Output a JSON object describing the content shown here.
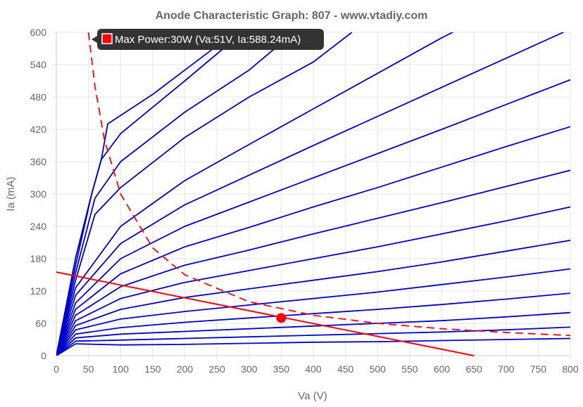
{
  "chart_data": {
    "type": "line",
    "title": "Anode Characteristic Graph: 807 - www.vtadiy.com",
    "xlabel": "Va (V)",
    "ylabel": "Ia (mA)",
    "xlim": [
      0,
      800
    ],
    "ylim": [
      0,
      600
    ],
    "x_ticks": [
      "0",
      "50",
      "100",
      "150",
      "200",
      "250",
      "300",
      "350",
      "400",
      "450",
      "500",
      "550",
      "600",
      "650",
      "700",
      "750",
      "800"
    ],
    "y_ticks": [
      "0",
      "60",
      "120",
      "180",
      "240",
      "300",
      "360",
      "420",
      "480",
      "540",
      "600"
    ],
    "grid": true,
    "colors": {
      "curves": "#0000cc",
      "load_line": "#ff0000",
      "max_power": "#ff0000",
      "operating_point": "#ff0000",
      "tooltip_bg": "#333333"
    },
    "series": [
      {
        "values": [
          [
            0,
            0
          ],
          [
            30,
            22
          ],
          [
            100,
            20
          ],
          [
            200,
            21
          ],
          [
            300,
            23
          ],
          [
            400,
            25
          ],
          [
            500,
            26
          ],
          [
            600,
            28
          ],
          [
            700,
            30
          ],
          [
            800,
            32
          ]
        ]
      },
      {
        "values": [
          [
            0,
            0
          ],
          [
            30,
            27
          ],
          [
            100,
            29
          ],
          [
            200,
            32
          ],
          [
            300,
            35
          ],
          [
            400,
            38
          ],
          [
            500,
            41
          ],
          [
            600,
            44
          ],
          [
            700,
            48
          ],
          [
            800,
            53
          ]
        ]
      },
      {
        "values": [
          [
            0,
            0
          ],
          [
            30,
            33
          ],
          [
            100,
            40
          ],
          [
            200,
            45
          ],
          [
            300,
            50
          ],
          [
            400,
            55
          ],
          [
            500,
            60
          ],
          [
            600,
            65
          ],
          [
            700,
            72
          ],
          [
            800,
            80
          ]
        ]
      },
      {
        "values": [
          [
            0,
            0
          ],
          [
            30,
            40
          ],
          [
            100,
            52
          ],
          [
            200,
            62
          ],
          [
            300,
            70
          ],
          [
            400,
            78
          ],
          [
            500,
            86
          ],
          [
            600,
            95
          ],
          [
            700,
            105
          ],
          [
            800,
            116
          ]
        ]
      },
      {
        "values": [
          [
            0,
            0
          ],
          [
            30,
            48
          ],
          [
            100,
            68
          ],
          [
            200,
            82
          ],
          [
            300,
            94
          ],
          [
            400,
            106
          ],
          [
            500,
            118
          ],
          [
            600,
            132
          ],
          [
            700,
            146
          ],
          [
            800,
            161
          ]
        ]
      },
      {
        "values": [
          [
            0,
            0
          ],
          [
            30,
            56
          ],
          [
            100,
            86
          ],
          [
            200,
            108
          ],
          [
            300,
            124
          ],
          [
            400,
            140
          ],
          [
            500,
            156
          ],
          [
            600,
            174
          ],
          [
            700,
            194
          ],
          [
            800,
            214
          ]
        ]
      },
      {
        "values": [
          [
            0,
            0
          ],
          [
            30,
            65
          ],
          [
            100,
            106
          ],
          [
            200,
            136
          ],
          [
            300,
            158
          ],
          [
            400,
            180
          ],
          [
            500,
            202
          ],
          [
            600,
            226
          ],
          [
            700,
            250
          ],
          [
            800,
            276
          ]
        ]
      },
      {
        "values": [
          [
            0,
            0
          ],
          [
            30,
            75
          ],
          [
            100,
            128
          ],
          [
            200,
            168
          ],
          [
            300,
            196
          ],
          [
            400,
            226
          ],
          [
            500,
            255
          ],
          [
            600,
            284
          ],
          [
            700,
            314
          ],
          [
            800,
            344
          ]
        ]
      },
      {
        "values": [
          [
            0,
            0
          ],
          [
            30,
            86
          ],
          [
            100,
            152
          ],
          [
            200,
            202
          ],
          [
            300,
            238
          ],
          [
            400,
            276
          ],
          [
            500,
            312
          ],
          [
            600,
            350
          ],
          [
            700,
            388
          ],
          [
            800,
            425
          ]
        ]
      },
      {
        "values": [
          [
            0,
            0
          ],
          [
            30,
            98
          ],
          [
            100,
            180
          ],
          [
            200,
            240
          ],
          [
            300,
            285
          ],
          [
            400,
            330
          ],
          [
            500,
            375
          ],
          [
            600,
            420
          ],
          [
            700,
            466
          ],
          [
            800,
            512
          ]
        ]
      },
      {
        "values": [
          [
            0,
            0
          ],
          [
            30,
            112
          ],
          [
            100,
            208
          ],
          [
            200,
            280
          ],
          [
            300,
            335
          ],
          [
            400,
            390
          ],
          [
            500,
            444
          ],
          [
            600,
            498
          ],
          [
            700,
            552
          ],
          [
            800,
            606
          ]
        ]
      },
      {
        "values": [
          [
            0,
            0
          ],
          [
            30,
            126
          ],
          [
            100,
            240
          ],
          [
            200,
            325
          ],
          [
            300,
            392
          ],
          [
            400,
            458
          ],
          [
            500,
            524
          ],
          [
            600,
            590
          ],
          [
            650,
            620
          ]
        ]
      },
      {
        "values": [
          [
            0,
            0
          ],
          [
            30,
            140
          ],
          [
            60,
            262
          ],
          [
            100,
            312
          ],
          [
            200,
            405
          ],
          [
            300,
            480
          ],
          [
            400,
            545
          ],
          [
            460,
            600
          ]
        ]
      },
      {
        "values": [
          [
            0,
            0
          ],
          [
            30,
            154
          ],
          [
            60,
            292
          ],
          [
            100,
            360
          ],
          [
            200,
            452
          ],
          [
            300,
            530
          ],
          [
            370,
            600
          ]
        ]
      },
      {
        "values": [
          [
            0,
            0
          ],
          [
            30,
            168
          ],
          [
            55,
            300
          ],
          [
            70,
            364
          ],
          [
            100,
            412
          ],
          [
            200,
            510
          ],
          [
            290,
            600
          ]
        ]
      },
      {
        "values": [
          [
            0,
            0
          ],
          [
            30,
            182
          ],
          [
            55,
            300
          ],
          [
            70,
            364
          ],
          [
            80,
            430
          ],
          [
            150,
            485
          ],
          [
            200,
            530
          ],
          [
            250,
            575
          ],
          [
            280,
            600
          ]
        ]
      }
    ],
    "load_line": [
      [
        0,
        155
      ],
      [
        650,
        0
      ]
    ],
    "max_power_curve": [
      [
        50,
        600
      ],
      [
        60,
        500
      ],
      [
        75,
        400
      ],
      [
        100,
        300
      ],
      [
        150,
        200
      ],
      [
        200,
        150
      ],
      [
        300,
        100
      ],
      [
        400,
        75
      ],
      [
        500,
        60
      ],
      [
        600,
        50
      ],
      [
        700,
        43
      ],
      [
        800,
        37.5
      ]
    ],
    "operating_point": {
      "va": 350,
      "ia": 70
    },
    "tooltip": {
      "text": "Max Power:30W (Va:51V, Ia:588.24mA)",
      "va": 51,
      "ia": 588.24
    }
  }
}
